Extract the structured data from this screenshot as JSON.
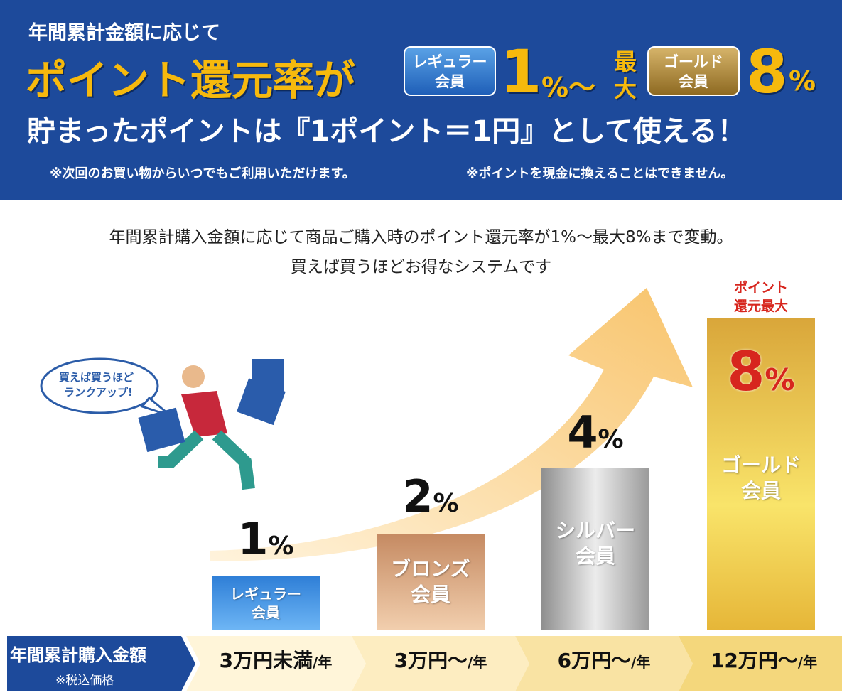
{
  "header": {
    "lead": "年間累計金額に応じて",
    "headline": "ポイント還元率が",
    "regular_badge": [
      "レギュラー",
      "会員"
    ],
    "min_rate": "1",
    "min_unit": "%〜",
    "max_label": [
      "最",
      "大"
    ],
    "gold_badge": [
      "ゴールド",
      "会員"
    ],
    "max_rate": "8",
    "max_unit": "%",
    "usage": "貯まったポイントは『1ポイント＝1円』として使える！",
    "notes": [
      "※次回のお買い物からいつでもご利用いただけます。",
      "※ポイントを現金に換えることはできません。"
    ]
  },
  "intro": [
    "年間累計購入金額に応じて商品ご購入時のポイント還元率が1%〜最大8%まで変動。",
    "買えば買うほどお得なシステムです"
  ],
  "bubble": [
    "買えば買うほど",
    "ランクアップ!"
  ],
  "tiers": [
    {
      "rate": "1",
      "unit": "%",
      "name": [
        "レギュラー",
        "会員"
      ]
    },
    {
      "rate": "2",
      "unit": "%",
      "name": [
        "ブロンズ",
        "会員"
      ]
    },
    {
      "rate": "4",
      "unit": "%",
      "name": [
        "シルバー",
        "会員"
      ]
    },
    {
      "rate": "8",
      "unit": "%",
      "name": [
        "ゴールド",
        "会員"
      ],
      "tag": [
        "ポイント",
        "還元最大"
      ]
    }
  ],
  "footer": {
    "label": "年間累計購入金額",
    "sub": "※税込価格",
    "amounts": [
      {
        "text": "3万円未満",
        "per": "/年"
      },
      {
        "text": "3万円〜",
        "per": "/年"
      },
      {
        "text": "6万円〜",
        "per": "/年"
      },
      {
        "text": "12万円〜",
        "per": "/年"
      }
    ]
  }
}
